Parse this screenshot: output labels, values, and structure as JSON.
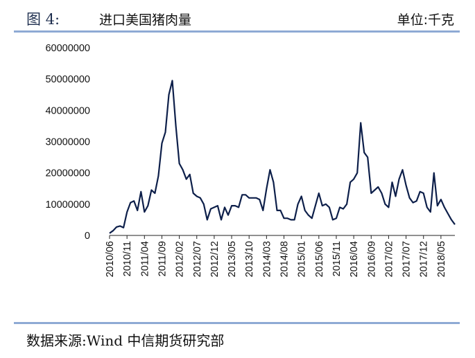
{
  "header": {
    "figure_label": "图 4:",
    "title": "进口美国猪肉量",
    "unit": "单位:千克"
  },
  "footer": {
    "source": "数据来源:Wind 中信期货研究部"
  },
  "colors": {
    "line": "#0d1f4a",
    "rule": "#8eaad4"
  },
  "chart_data": {
    "type": "line",
    "title": "",
    "xlabel": "",
    "ylabel": "",
    "ylim": [
      0,
      60000000
    ],
    "yticks": [
      "60000000",
      "50000000",
      "40000000",
      "30000000",
      "20000000",
      "10000000",
      "0"
    ],
    "xticks": [
      "2010/06",
      "2010/11",
      "2011/04",
      "2011/09",
      "2012/02",
      "2012/07",
      "2012/12",
      "2013/05",
      "2013/10",
      "2014/03",
      "2014/08",
      "2015/01",
      "2015/06",
      "2015/11",
      "2016/04",
      "2016/09",
      "2017/02",
      "2017/07",
      "2017/12",
      "2018/05"
    ],
    "grid": false,
    "legend": "none",
    "series": [
      {
        "x": [
          "2010/06",
          "2010/07",
          "2010/08",
          "2010/09",
          "2010/10",
          "2010/11",
          "2010/12",
          "2011/01",
          "2011/02",
          "2011/03",
          "2011/04",
          "2011/05",
          "2011/06",
          "2011/07",
          "2011/08",
          "2011/09",
          "2011/10",
          "2011/11",
          "2011/12",
          "2012/01",
          "2012/02",
          "2012/03",
          "2012/04",
          "2012/05",
          "2012/06",
          "2012/07",
          "2012/08",
          "2012/09",
          "2012/10",
          "2012/11",
          "2012/12",
          "2013/01",
          "2013/02",
          "2013/03",
          "2013/04",
          "2013/05",
          "2013/06",
          "2013/07",
          "2013/08",
          "2013/09",
          "2013/10",
          "2013/11",
          "2013/12",
          "2014/01",
          "2014/02",
          "2014/03",
          "2014/04",
          "2014/05",
          "2014/06",
          "2014/07",
          "2014/08",
          "2014/09",
          "2014/10",
          "2014/11",
          "2014/12",
          "2015/01",
          "2015/02",
          "2015/03",
          "2015/04",
          "2015/05",
          "2015/06",
          "2015/07",
          "2015/08",
          "2015/09",
          "2015/10",
          "2015/11",
          "2015/12",
          "2016/01",
          "2016/02",
          "2016/03",
          "2016/04",
          "2016/05",
          "2016/06",
          "2016/07",
          "2016/08",
          "2016/09",
          "2016/10",
          "2016/11",
          "2016/12",
          "2017/01",
          "2017/02",
          "2017/03",
          "2017/04",
          "2017/05",
          "2017/06",
          "2017/07",
          "2017/08",
          "2017/09",
          "2017/10",
          "2017/11",
          "2017/12",
          "2018/01",
          "2018/02",
          "2018/03",
          "2018/04",
          "2018/05",
          "2018/06",
          "2018/07",
          "2018/08",
          "2018/09"
        ],
        "values": [
          700000,
          1500000,
          2700000,
          3000000,
          2500000,
          7500000,
          10500000,
          11000000,
          8000000,
          14000000,
          7500000,
          9500000,
          14500000,
          13500000,
          19000000,
          29500000,
          33000000,
          45000000,
          49500000,
          35000000,
          23000000,
          21000000,
          18000000,
          19500000,
          13500000,
          12500000,
          12000000,
          10000000,
          5000000,
          8500000,
          9000000,
          9500000,
          5000000,
          9000000,
          6500000,
          9500000,
          9500000,
          9000000,
          13000000,
          13000000,
          12000000,
          12000000,
          12000000,
          11500000,
          8000000,
          15000000,
          21000000,
          17000000,
          8000000,
          8000000,
          5500000,
          5500000,
          5000000,
          5000000,
          10000000,
          12500000,
          8000000,
          6500000,
          5500000,
          9500000,
          13500000,
          9500000,
          10000000,
          9000000,
          5000000,
          5500000,
          9000000,
          8500000,
          10000000,
          17000000,
          18000000,
          20000000,
          36000000,
          26500000,
          25000000,
          13500000,
          14500000,
          15500000,
          13500000,
          10000000,
          9000000,
          17000000,
          12500000,
          18000000,
          21000000,
          16000000,
          12000000,
          10500000,
          11000000,
          14000000,
          13500000,
          9000000,
          7500000,
          20000000,
          9500000,
          11500000,
          9000000,
          7000000,
          5000000,
          3500000
        ]
      }
    ]
  }
}
